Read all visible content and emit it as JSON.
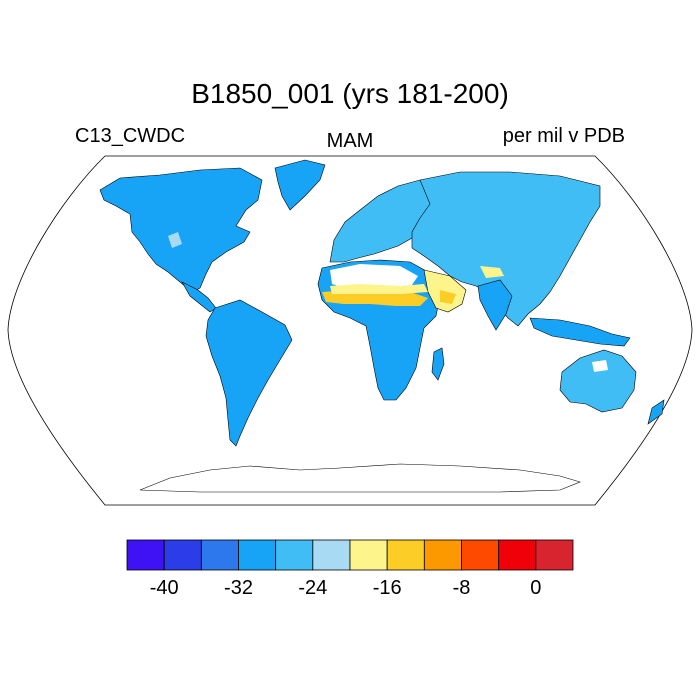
{
  "title": "B1850_001 (yrs 181-200)",
  "subtitle_left": "C13_CWDC",
  "subtitle_center": "MAM",
  "subtitle_right": "per mil v PDB",
  "colorbar": {
    "colors": [
      "#3f12f5",
      "#2a3de8",
      "#2e78ee",
      "#17a4f7",
      "#41bdf5",
      "#a8daf3",
      "#fdf58c",
      "#fdcd27",
      "#fd9900",
      "#fd4a00",
      "#f00008",
      "#d8242e"
    ],
    "tick_labels": [
      "-40",
      "-32",
      "-24",
      "-16",
      "-8",
      "0"
    ]
  },
  "map": {
    "projection": "Robinson",
    "land_fill_dominant": "#17a4f7",
    "accent_fills": [
      "#41bdf5",
      "#fdf58c",
      "#fdcd27",
      "#a8daf3"
    ]
  }
}
